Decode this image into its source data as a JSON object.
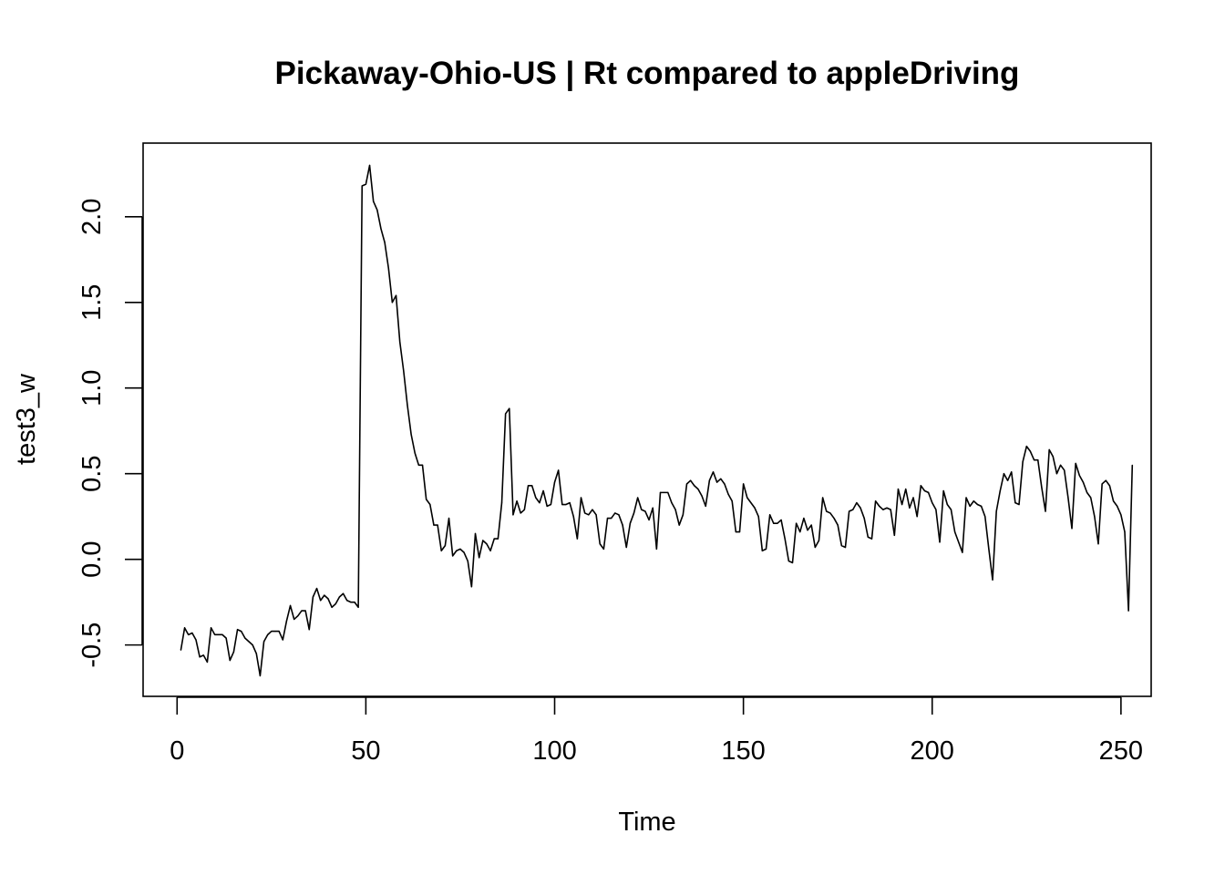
{
  "chart_data": {
    "type": "line",
    "title": "Pickaway-Ohio-US | Rt compared to appleDriving",
    "xlabel": "Time",
    "ylabel": "test3_w",
    "xlim": [
      -9,
      258
    ],
    "ylim": [
      -0.8,
      2.43
    ],
    "x_ticks": [
      0,
      50,
      100,
      150,
      200,
      250
    ],
    "x_tick_labels": [
      "0",
      "50",
      "100",
      "150",
      "200",
      "250"
    ],
    "y_ticks": [
      -0.5,
      0.0,
      0.5,
      1.0,
      1.5,
      2.0
    ],
    "y_tick_labels": [
      "-0.5",
      "0.0",
      "0.5",
      "1.0",
      "1.5",
      "2.0"
    ],
    "grid": false,
    "legend": "none",
    "line_color": "#000000",
    "series": [
      {
        "x_start": 1,
        "values": [
          -0.53,
          -0.4,
          -0.44,
          -0.43,
          -0.47,
          -0.57,
          -0.56,
          -0.6,
          -0.4,
          -0.44,
          -0.44,
          -0.44,
          -0.46,
          -0.59,
          -0.54,
          -0.41,
          -0.42,
          -0.46,
          -0.48,
          -0.5,
          -0.55,
          -0.68,
          -0.48,
          -0.44,
          -0.42,
          -0.42,
          -0.42,
          -0.47,
          -0.36,
          -0.27,
          -0.35,
          -0.33,
          -0.3,
          -0.3,
          -0.41,
          -0.22,
          -0.17,
          -0.24,
          -0.21,
          -0.23,
          -0.28,
          -0.26,
          -0.22,
          -0.2,
          -0.24,
          -0.25,
          -0.25,
          -0.28,
          2.18,
          2.19,
          2.3,
          2.09,
          2.04,
          1.93,
          1.85,
          1.7,
          1.5,
          1.54,
          1.27,
          1.1,
          0.9,
          0.73,
          0.62,
          0.55,
          0.55,
          0.35,
          0.32,
          0.2,
          0.2,
          0.05,
          0.08,
          0.24,
          0.02,
          0.05,
          0.06,
          0.04,
          -0.01,
          -0.16,
          0.15,
          0.01,
          0.11,
          0.09,
          0.05,
          0.12,
          0.12,
          0.33,
          0.85,
          0.88,
          0.26,
          0.34,
          0.27,
          0.29,
          0.43,
          0.43,
          0.36,
          0.33,
          0.4,
          0.31,
          0.32,
          0.45,
          0.52,
          0.32,
          0.32,
          0.33,
          0.25,
          0.12,
          0.36,
          0.27,
          0.26,
          0.29,
          0.26,
          0.09,
          0.06,
          0.24,
          0.24,
          0.27,
          0.26,
          0.2,
          0.07,
          0.21,
          0.27,
          0.36,
          0.29,
          0.28,
          0.23,
          0.3,
          0.06,
          0.39,
          0.39,
          0.39,
          0.33,
          0.29,
          0.2,
          0.26,
          0.44,
          0.46,
          0.43,
          0.41,
          0.37,
          0.31,
          0.46,
          0.51,
          0.45,
          0.47,
          0.44,
          0.38,
          0.34,
          0.16,
          0.16,
          0.44,
          0.36,
          0.33,
          0.3,
          0.25,
          0.05,
          0.06,
          0.26,
          0.21,
          0.21,
          0.23,
          0.12,
          -0.01,
          -0.02,
          0.21,
          0.16,
          0.24,
          0.17,
          0.2,
          0.07,
          0.11,
          0.36,
          0.28,
          0.27,
          0.24,
          0.2,
          0.08,
          0.07,
          0.28,
          0.29,
          0.33,
          0.3,
          0.24,
          0.13,
          0.12,
          0.34,
          0.31,
          0.29,
          0.3,
          0.29,
          0.14,
          0.41,
          0.32,
          0.41,
          0.3,
          0.36,
          0.25,
          0.43,
          0.4,
          0.39,
          0.33,
          0.29,
          0.1,
          0.4,
          0.32,
          0.29,
          0.16,
          0.1,
          0.04,
          0.36,
          0.31,
          0.34,
          0.32,
          0.31,
          0.25,
          0.06,
          -0.12,
          0.28,
          0.4,
          0.5,
          0.46,
          0.51,
          0.33,
          0.32,
          0.57,
          0.66,
          0.63,
          0.58,
          0.58,
          0.42,
          0.28,
          0.64,
          0.6,
          0.5,
          0.55,
          0.52,
          0.36,
          0.18,
          0.56,
          0.49,
          0.45,
          0.39,
          0.36,
          0.25,
          0.09,
          0.44,
          0.46,
          0.43,
          0.34,
          0.31,
          0.26,
          0.16,
          -0.3,
          0.55
        ]
      }
    ]
  }
}
